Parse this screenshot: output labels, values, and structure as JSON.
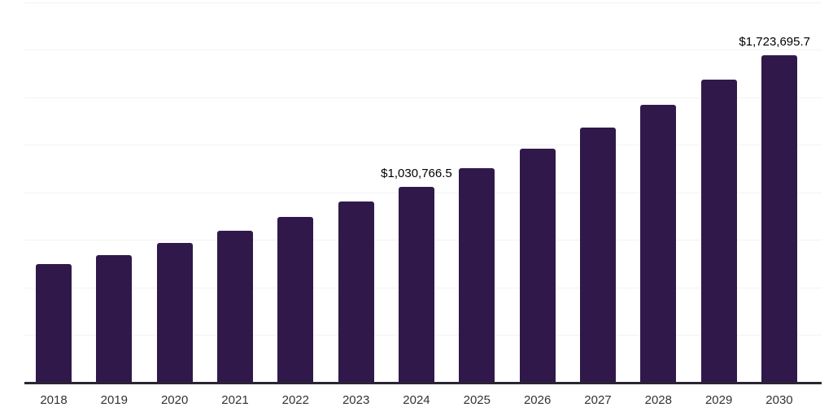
{
  "chart_data": {
    "type": "bar",
    "title": "",
    "xlabel": "",
    "ylabel": "",
    "categories": [
      "2018",
      "2019",
      "2020",
      "2021",
      "2022",
      "2023",
      "2024",
      "2025",
      "2026",
      "2027",
      "2028",
      "2029",
      "2030"
    ],
    "values": [
      622000,
      669000,
      735000,
      800000,
      872000,
      952000,
      1030766.5,
      1128000,
      1230000,
      1342000,
      1462000,
      1592000,
      1723695.7
    ],
    "value_labels": [
      {
        "category": "2024",
        "text": "$1,030,766.5"
      },
      {
        "category": "2030",
        "text": "$1,723,695.7"
      }
    ],
    "ylim": [
      0,
      2000000
    ],
    "gridline_step": 250000,
    "grid": "horizontal-only",
    "legend": "none",
    "colors": {
      "bar": "#30194a",
      "axis_line": "#2a2533",
      "gridline": "#f2f2f4",
      "tick_label": "#333333",
      "data_label": "#000000",
      "background": "#ffffff"
    }
  }
}
